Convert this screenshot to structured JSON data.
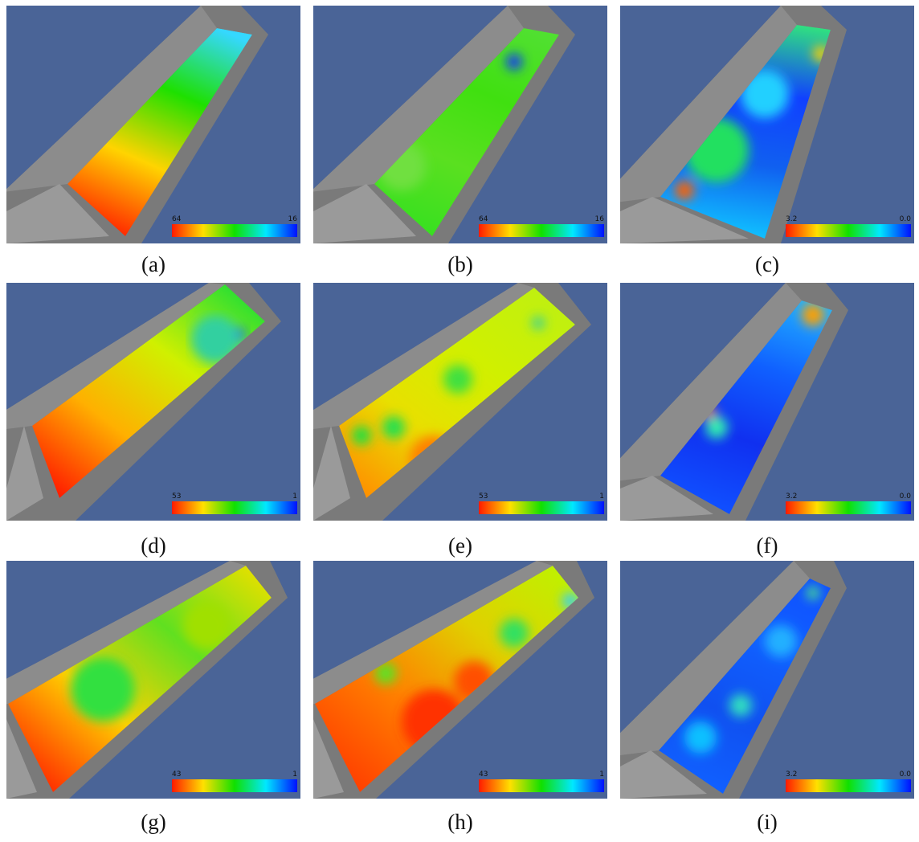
{
  "panels": [
    {
      "caption": "(a)",
      "scale": {
        "max": "64",
        "min": "16"
      }
    },
    {
      "caption": "(b)",
      "scale": {
        "max": "64",
        "min": "16"
      }
    },
    {
      "caption": "(c)",
      "scale": {
        "max": "3.2",
        "min": "0.0"
      }
    },
    {
      "caption": "(d)",
      "scale": {
        "max": "53",
        "min": "1"
      }
    },
    {
      "caption": "(e)",
      "scale": {
        "max": "53",
        "min": "1"
      }
    },
    {
      "caption": "(f)",
      "scale": {
        "max": "3.2",
        "min": "0.0"
      }
    },
    {
      "caption": "(g)",
      "scale": {
        "max": "43",
        "min": "1"
      }
    },
    {
      "caption": "(h)",
      "scale": {
        "max": "43",
        "min": "1"
      }
    },
    {
      "caption": "(i)",
      "scale": {
        "max": "3.2",
        "min": "0.0"
      }
    }
  ]
}
